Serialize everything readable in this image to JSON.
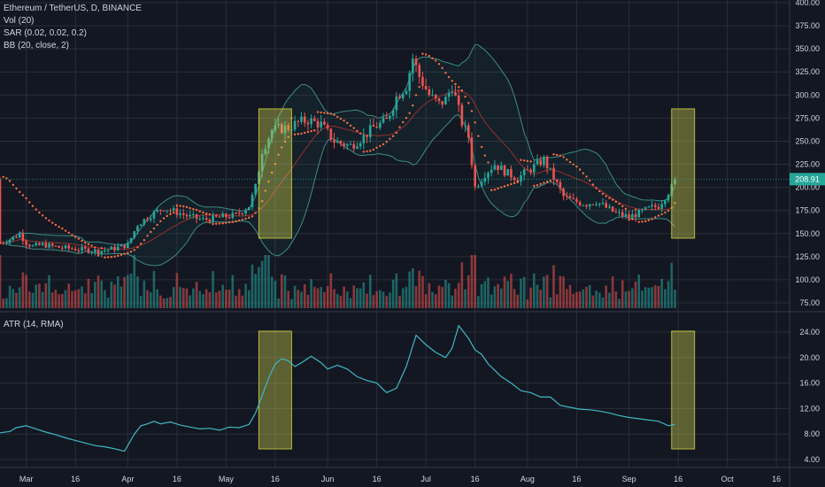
{
  "legend": {
    "symbol": "Ethereum / TetherUS, D, BINANCE",
    "vol": "Vol (20)",
    "sar": "SAR (0.02, 0.02, 0.2)",
    "bb": "BB (20, close, 2)",
    "atr": "ATR (14, RMA)"
  },
  "price_tag": "208.91",
  "colors": {
    "background": "#131722",
    "grid": "#2a2e39",
    "up": "#26a69a",
    "down": "#ef5350",
    "bb_band": "#3c8c85",
    "bb_fill": "rgba(38,166,154,0.07)",
    "bb_mid": "#9b2c2c",
    "sar": "#ff7043",
    "atr_line": "#3fb7c3",
    "highlight_fill": "rgba(215,215,80,0.38)",
    "highlight_border": "#b9b93c",
    "text": "#d1d4dc"
  },
  "chart_data": [
    {
      "type": "candlestick",
      "panel": "price",
      "y_ticks": [
        "75.00",
        "100.00",
        "125.00",
        "150.00",
        "175.00",
        "200.00",
        "225.00",
        "250.00",
        "275.00",
        "300.00",
        "325.00",
        "350.00",
        "375.00",
        "400.00"
      ],
      "ylim": [
        65,
        400
      ],
      "x_ticks": [
        "Mar",
        "16",
        "Apr",
        "16",
        "May",
        "16",
        "Jun",
        "16",
        "Jul",
        "16",
        "Aug",
        "16",
        "Sep",
        "16",
        "Oct",
        "16"
      ],
      "x_tick_days": [
        28,
        43,
        59,
        74,
        89,
        104,
        120,
        135,
        150,
        165,
        181,
        196,
        212,
        227,
        242,
        257
      ],
      "xlim": [
        20,
        261
      ],
      "last_close": 208.91,
      "close_anchors": [
        [
          20,
          140
        ],
        [
          24,
          145
        ],
        [
          26,
          150
        ],
        [
          28,
          140
        ],
        [
          30,
          136
        ],
        [
          33,
          138
        ],
        [
          38,
          135
        ],
        [
          44,
          133
        ],
        [
          50,
          131
        ],
        [
          55,
          134
        ],
        [
          59,
          138
        ],
        [
          62,
          160
        ],
        [
          66,
          170
        ],
        [
          70,
          178
        ],
        [
          74,
          173
        ],
        [
          78,
          168
        ],
        [
          82,
          165
        ],
        [
          86,
          167
        ],
        [
          92,
          170
        ],
        [
          96,
          180
        ],
        [
          98,
          200
        ],
        [
          100,
          240
        ],
        [
          103,
          262
        ],
        [
          108,
          265
        ],
        [
          111,
          270
        ],
        [
          114,
          273
        ],
        [
          118,
          268
        ],
        [
          122,
          250
        ],
        [
          127,
          245
        ],
        [
          131,
          255
        ],
        [
          134,
          265
        ],
        [
          138,
          272
        ],
        [
          141,
          298
        ],
        [
          144,
          310
        ],
        [
          146,
          340
        ],
        [
          148,
          320
        ],
        [
          151,
          300
        ],
        [
          154,
          290
        ],
        [
          156,
          295
        ],
        [
          158,
          310
        ],
        [
          161,
          270
        ],
        [
          163,
          255
        ],
        [
          165,
          200
        ],
        [
          168,
          215
        ],
        [
          171,
          225
        ],
        [
          175,
          215
        ],
        [
          178,
          210
        ],
        [
          182,
          220
        ],
        [
          186,
          230
        ],
        [
          189,
          210
        ],
        [
          192,
          190
        ],
        [
          195,
          185
        ],
        [
          199,
          182
        ],
        [
          202,
          185
        ],
        [
          205,
          178
        ],
        [
          208,
          172
        ],
        [
          212,
          168
        ],
        [
          215,
          172
        ],
        [
          218,
          177
        ],
        [
          221,
          180
        ],
        [
          223,
          190
        ],
        [
          225,
          200
        ],
        [
          226,
          209
        ]
      ],
      "highlights": [
        [
          99,
          109
        ],
        [
          225,
          232
        ]
      ]
    },
    {
      "type": "bar",
      "panel": "volume",
      "series": "Vol (20)"
    },
    {
      "type": "line",
      "panel": "atr",
      "y_ticks": [
        "4.00",
        "8.00",
        "12.00",
        "16.00",
        "20.00",
        "24.00"
      ],
      "ylim": [
        3.5,
        25.5
      ],
      "x": [
        20,
        23,
        25,
        28,
        31,
        34,
        37,
        40,
        43,
        46,
        49,
        52,
        55,
        58,
        61,
        63,
        65,
        67,
        69,
        72,
        75,
        78,
        81,
        84,
        87,
        90,
        93,
        96,
        98,
        100,
        102,
        104,
        106,
        108,
        110,
        112,
        115,
        118,
        120,
        123,
        126,
        129,
        132,
        135,
        138,
        141,
        144,
        147,
        150,
        153,
        156,
        158,
        160,
        163,
        165,
        167,
        169,
        171,
        173,
        176,
        179,
        182,
        185,
        188,
        191,
        194,
        197,
        200,
        203,
        206,
        209,
        212,
        215,
        218,
        221,
        224,
        226
      ],
      "values": [
        8.2,
        8.4,
        9.0,
        9.3,
        8.8,
        8.3,
        7.9,
        7.4,
        7.0,
        6.6,
        6.2,
        6.0,
        5.7,
        5.3,
        8.0,
        9.3,
        9.6,
        10.0,
        9.6,
        9.9,
        9.4,
        9.1,
        8.8,
        8.9,
        8.6,
        9.1,
        9.0,
        9.5,
        11.3,
        14.0,
        16.8,
        19.0,
        19.8,
        19.5,
        18.6,
        19.2,
        20.2,
        19.2,
        18.2,
        18.8,
        18.2,
        17.0,
        16.4,
        16.0,
        14.5,
        15.2,
        18.6,
        23.5,
        22.0,
        20.8,
        20.0,
        21.5,
        25.0,
        23.0,
        21.2,
        20.5,
        19.0,
        18.0,
        17.0,
        16.0,
        14.8,
        14.5,
        13.8,
        13.8,
        12.5,
        12.2,
        11.9,
        11.8,
        11.6,
        11.3,
        10.9,
        10.6,
        10.4,
        10.2,
        10.0,
        9.3,
        9.5
      ],
      "highlights": [
        [
          99,
          109
        ],
        [
          225,
          232
        ]
      ]
    }
  ]
}
